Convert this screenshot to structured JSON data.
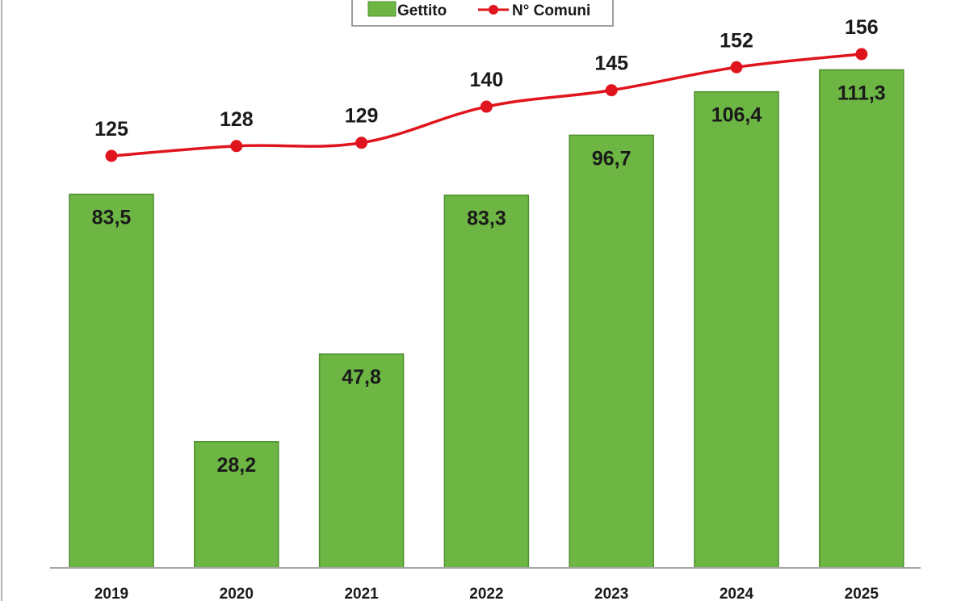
{
  "chart_data": {
    "type": "bar",
    "categories": [
      "2019",
      "2020",
      "2021",
      "2022",
      "2023",
      "2024",
      "2025"
    ],
    "series": [
      {
        "name": "Gettito",
        "type": "bar",
        "values": [
          83.5,
          28.2,
          47.8,
          83.3,
          96.7,
          106.4,
          111.3
        ],
        "labels": [
          "83,5",
          "28,2",
          "47,8",
          "83,3",
          "96,7",
          "106,4",
          "111,3"
        ],
        "color": "#6db644",
        "ylim": [
          0,
          121
        ]
      },
      {
        "name": "N° Comuni",
        "type": "line",
        "values": [
          125,
          128,
          129,
          140,
          145,
          152,
          156
        ],
        "labels": [
          "125",
          "128",
          "129",
          "140",
          "145",
          "152",
          "156"
        ],
        "color": "#e0141c",
        "ylim": [
          45,
          160
        ]
      }
    ],
    "legend": {
      "position": "top-center",
      "entries": [
        "Gettito",
        "N° Comuni"
      ]
    },
    "grid": false
  }
}
